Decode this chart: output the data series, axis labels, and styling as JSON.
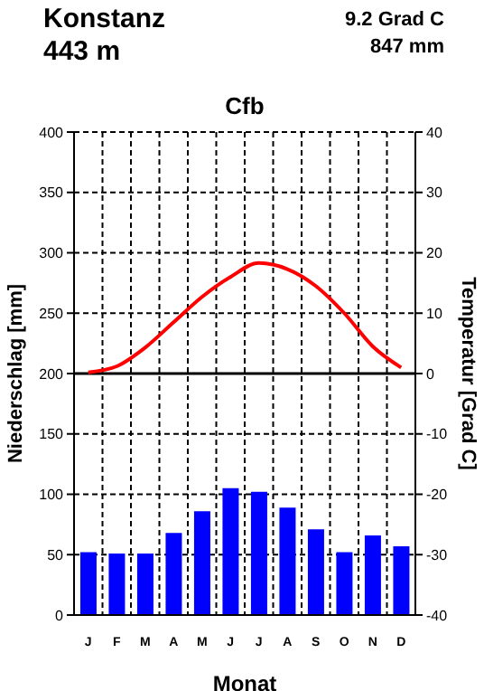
{
  "chart_data": {
    "type": "bar",
    "title": "Cfb",
    "xlabel": "Monat",
    "ylabel": "Niederschlag [mm]",
    "y2label": "Temperatur [Grad C]",
    "annotations": [
      "Konstanz",
      "443 m",
      "9.2 Grad C",
      "847 mm"
    ],
    "categories": [
      "J",
      "F",
      "M",
      "A",
      "M",
      "J",
      "J",
      "A",
      "S",
      "O",
      "N",
      "D"
    ],
    "series": [
      {
        "color": "#0000ff",
        "values": [
          52,
          51,
          51,
          68,
          86,
          105,
          102,
          89,
          71,
          52,
          66,
          57
        ]
      },
      {
        "type": "line",
        "axis": "y2",
        "color": "#ff0000",
        "values": [
          0.2,
          1.2,
          4.3,
          8.5,
          12.7,
          16.0,
          18.3,
          17.3,
          14.5,
          10.0,
          4.5,
          1.0
        ]
      }
    ],
    "ylim": [
      0,
      400
    ],
    "yticks": [
      0,
      50,
      100,
      150,
      200,
      250,
      300,
      350,
      400
    ],
    "y2lim": [
      -40,
      40
    ],
    "y2ticks": [
      -40,
      -30,
      -20,
      -10,
      0,
      10,
      20,
      30,
      40
    ],
    "ref_lines": [
      {
        "axis": "y2",
        "value": 0,
        "color": "#000000"
      }
    ],
    "grid": true,
    "legend": false
  }
}
